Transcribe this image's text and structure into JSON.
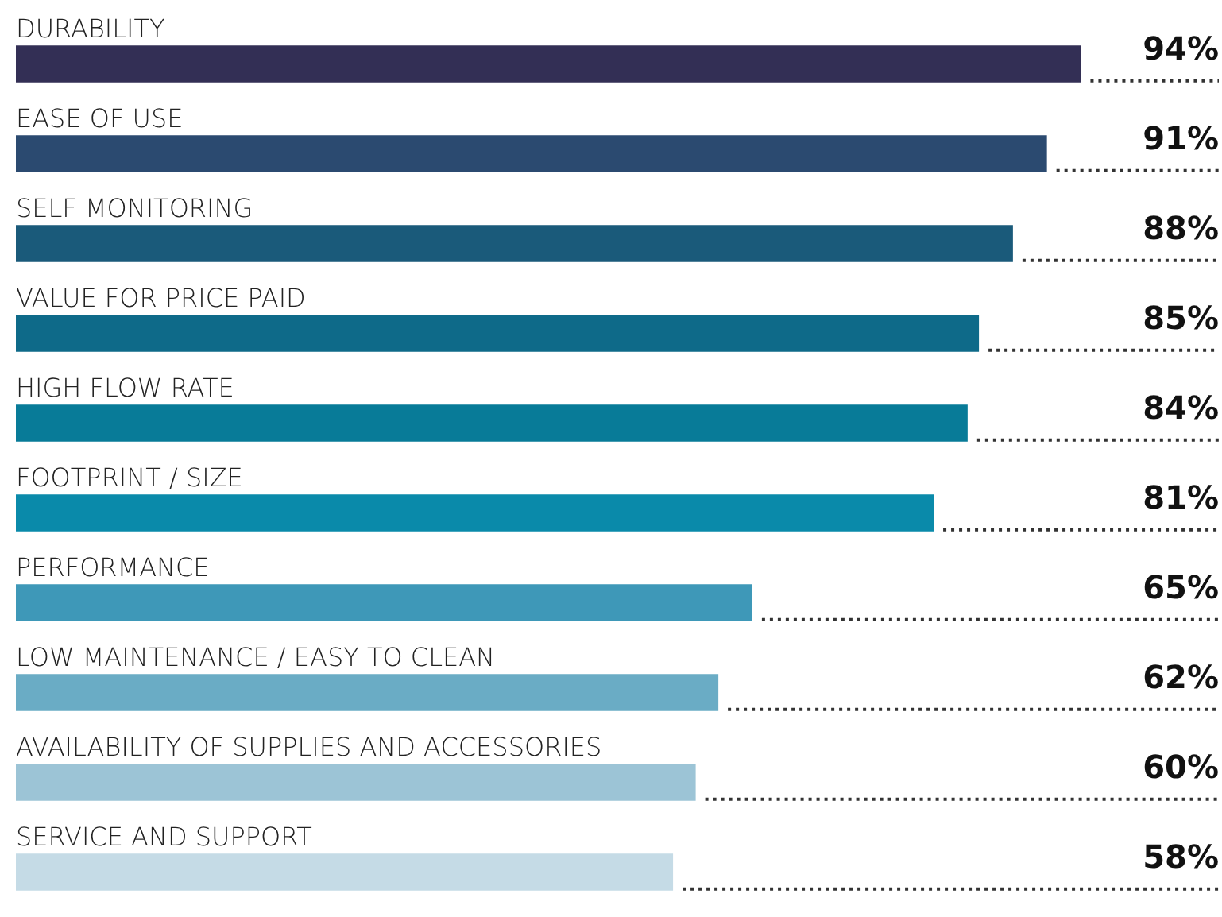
{
  "chart_data": {
    "type": "bar",
    "orientation": "horizontal",
    "tick_labels": false,
    "categories": [
      "DURABILITY",
      "EASE OF USE",
      "SELF MONITORING",
      "VALUE FOR PRICE PAID",
      "HIGH FLOW RATE",
      "FOOTPRINT / SIZE",
      "PERFORMANCE",
      "LOW MAINTENANCE / EASY TO CLEAN",
      "AVAILABILITY OF SUPPLIES AND ACCESSORIES",
      "SERVICE AND SUPPORT"
    ],
    "values": [
      94,
      91,
      88,
      85,
      84,
      81,
      65,
      62,
      60,
      58
    ],
    "value_labels": [
      "94%",
      "91%",
      "88%",
      "85%",
      "84%",
      "81%",
      "65%",
      "62%",
      "60%",
      "58%"
    ],
    "colors": [
      "#332f55",
      "#2b4a70",
      "#1a5a7a",
      "#0e6a89",
      "#087b98",
      "#0a8aaa",
      "#3e98b8",
      "#6aacc5",
      "#9cc4d6",
      "#c5dbe6"
    ]
  }
}
